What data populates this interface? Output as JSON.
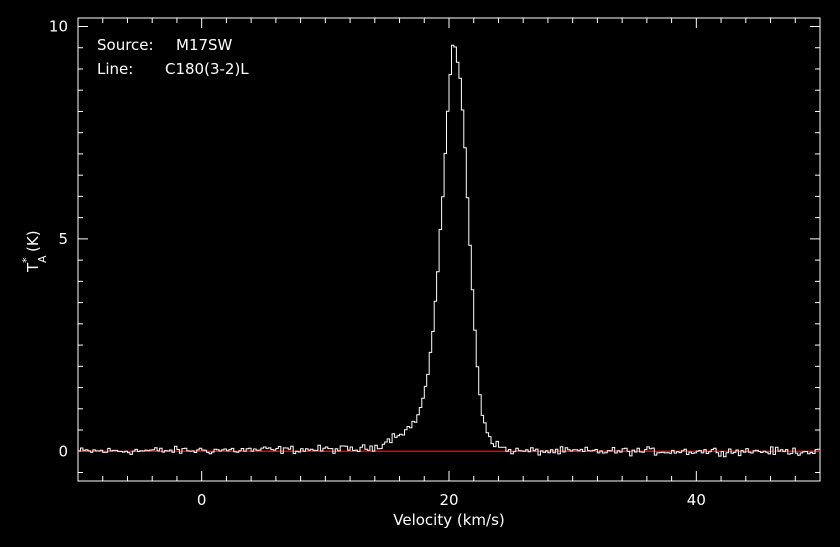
{
  "annotations": {
    "source_label": "Source:",
    "source_value": "M17SW",
    "line_label": "Line:",
    "line_value": "C180(3-2)L"
  },
  "chart_data": {
    "type": "line",
    "xlabel": "Velocity (km/s)",
    "ylabel": "T",
    "ylabel_super": "*",
    "ylabel_sub": "A",
    "ylabel_unit": "(K)",
    "xlim": [
      -10,
      50
    ],
    "ylim": [
      -0.7,
      10.2
    ],
    "xticks": [
      0,
      20,
      40
    ],
    "yticks": [
      0,
      5,
      10
    ],
    "baseline": 0,
    "grid": false,
    "legend": "none",
    "colors": {
      "spectrum": "#ffffff",
      "baseline": "#cc2222",
      "axes": "#ffffff"
    },
    "channel_width_kms": 0.2,
    "peak": {
      "x": 20.3,
      "y": 9.6
    },
    "series": [
      {
        "style": "step",
        "x": [
          -10,
          13,
          14,
          14.8,
          15.5,
          16.2,
          17,
          17.6,
          18.2,
          18.7,
          19.1,
          19.5,
          19.8,
          20.1,
          20.3,
          20.6,
          20.9,
          21.2,
          21.5,
          21.8,
          22.1,
          22.4,
          22.7,
          23.1,
          23.5,
          24,
          24.5,
          25,
          26,
          50
        ],
        "y": [
          0,
          0.05,
          0.1,
          0.2,
          0.35,
          0.45,
          0.6,
          0.9,
          1.6,
          2.8,
          4.2,
          6.0,
          7.6,
          8.9,
          9.6,
          9.4,
          8.8,
          7.6,
          6.0,
          4.3,
          2.8,
          1.6,
          0.9,
          0.45,
          0.25,
          0.12,
          0.05,
          0.02,
          0,
          0
        ]
      }
    ]
  }
}
